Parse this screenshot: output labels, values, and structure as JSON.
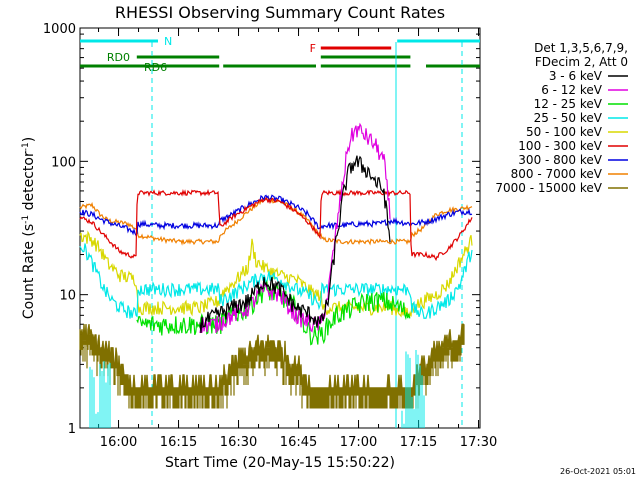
{
  "chart_data": {
    "type": "line",
    "title": "RHESSI Observing Summary Count Rates",
    "xlabel": "Start Time (20-May-15 15:50:22)",
    "ylabel_main": "Count Rate (s",
    "ylabel_sup1": "-1",
    "ylabel_mid": " detector",
    "ylabel_sup2": "-1",
    "ylabel_end": ")",
    "yscale": "log",
    "ylim": [
      1,
      1000
    ],
    "xlim_min": [
      0,
      100
    ],
    "x_tick_labels": [
      "16:00",
      "16:15",
      "16:30",
      "16:45",
      "17:00",
      "17:15",
      "17:30"
    ],
    "x_tick_min": [
      9.633,
      24.633,
      39.633,
      54.633,
      69.633,
      84.633,
      99.633
    ],
    "y_tick_labels": [
      "1",
      "10",
      "100",
      "1000"
    ],
    "y_tick_values": [
      1,
      10,
      100,
      1000
    ],
    "legend": {
      "placement": "right",
      "header1": "Det 1,3,5,6,7,9,",
      "header2": "FDecim 2, Att 0",
      "entries": [
        {
          "label": "3 - 6 keV",
          "color": "#000000"
        },
        {
          "label": "6 - 12 keV",
          "color": "#e000e0"
        },
        {
          "label": "12 - 25 keV",
          "color": "#00e000"
        },
        {
          "label": "25 - 50 keV",
          "color": "#00e8e8"
        },
        {
          "label": "50 - 100 keV",
          "color": "#d8d800"
        },
        {
          "label": "100 - 300 keV",
          "color": "#e00000"
        },
        {
          "label": "300 - 800 keV",
          "color": "#0000e0"
        },
        {
          "label": "800 - 7000 keV",
          "color": "#f08000"
        },
        {
          "label": "7000 - 15000 keV",
          "color": "#807000"
        }
      ]
    },
    "flags": [
      {
        "label": "N",
        "color": "#00e8e8",
        "segments": [
          [
            0,
            19.5
          ],
          [
            79.3,
            100
          ]
        ],
        "level": 0
      },
      {
        "label": "F",
        "color": "#e00000",
        "segments": [
          [
            60.2,
            77.8
          ]
        ],
        "level": 1
      },
      {
        "label": "RD0",
        "color": "#008000",
        "segments": [
          [
            14.2,
            34.8
          ],
          [
            60.2,
            82.6
          ]
        ],
        "level": 2
      },
      {
        "label": "RD6",
        "color": "#008000",
        "segments": [
          [
            0,
            34.8
          ],
          [
            35.8,
            59.0
          ],
          [
            60.2,
            82.6
          ],
          [
            86.5,
            100
          ]
        ],
        "level": 3
      }
    ],
    "vlines": [
      {
        "x": 18.0,
        "style": "dashed"
      },
      {
        "x": 79.0,
        "style": "solid"
      },
      {
        "x": 95.5,
        "style": "dashed"
      }
    ],
    "series": [
      {
        "name": "800 - 7000 keV",
        "color": "#f08000",
        "x": [
          0,
          3,
          5,
          7,
          12,
          14.2,
          14.5,
          20,
          25,
          30,
          34.8,
          35,
          38,
          42,
          46,
          50,
          54,
          57,
          59,
          60.2,
          60.5,
          65,
          70,
          75,
          78,
          82.6,
          83,
          86,
          89,
          92,
          95,
          98
        ],
        "y": [
          45,
          47,
          40,
          36,
          34,
          31,
          28,
          26,
          25,
          25,
          25,
          28,
          33,
          42,
          52,
          50,
          43,
          36,
          30,
          28,
          26,
          25,
          25,
          25,
          25,
          25,
          28,
          32,
          40,
          43,
          44,
          46
        ]
      },
      {
        "name": "300 - 800 keV",
        "color": "#0000e0",
        "x": [
          0,
          3,
          5,
          7,
          12,
          14.2,
          14.5,
          20,
          25,
          30,
          34.8,
          35,
          38,
          42,
          46,
          50,
          54,
          57,
          59,
          60.2,
          60.5,
          65,
          70,
          75,
          78,
          82.6,
          83,
          86,
          89,
          92,
          95,
          98
        ],
        "y": [
          42,
          40,
          37,
          35,
          31,
          29,
          34,
          33,
          33,
          33,
          33,
          36,
          40,
          47,
          54,
          52,
          46,
          40,
          34,
          31,
          33,
          33,
          34,
          34,
          36,
          34,
          34,
          35,
          37,
          40,
          42,
          42
        ]
      },
      {
        "name": "100 - 300 keV",
        "color": "#e00000",
        "x": [
          0,
          3,
          5,
          7,
          10,
          12,
          14.0,
          14.3,
          20,
          25,
          30,
          34.6,
          34.9,
          38,
          42,
          46,
          50,
          54,
          57,
          59,
          60.0,
          60.3,
          65,
          70,
          75,
          78,
          82.5,
          82.8,
          86,
          89,
          92,
          95,
          98
        ],
        "y": [
          38,
          35,
          30,
          26,
          21,
          20,
          19,
          58,
          58,
          58,
          58,
          58,
          32,
          38,
          45,
          52,
          50,
          42,
          35,
          30,
          26,
          58,
          58,
          58,
          58,
          58,
          58,
          20,
          20,
          19,
          22,
          28,
          38
        ]
      },
      {
        "name": "50 - 100 keV",
        "color": "#d8d800",
        "x": [
          0,
          3,
          5,
          7,
          10,
          14.2,
          14.5,
          20,
          25,
          30,
          34.8,
          35,
          38,
          42,
          43,
          44,
          46,
          50,
          54,
          57,
          59,
          60.2,
          60.5,
          65,
          70,
          75,
          78,
          82.6,
          83,
          86,
          89,
          92,
          95,
          98
        ],
        "y": [
          28,
          26,
          22,
          17,
          14,
          13,
          8,
          8,
          8,
          8,
          9,
          10,
          12,
          16,
          24,
          18,
          16,
          14,
          13,
          11,
          10,
          10,
          8,
          8,
          8,
          8,
          8,
          7,
          8,
          9,
          10,
          12,
          18,
          26
        ]
      },
      {
        "name": "25 - 50 keV",
        "color": "#00e8e8",
        "x": [
          0,
          2,
          4,
          6,
          8,
          10,
          14.2,
          14.5,
          20,
          25,
          30,
          34.8,
          35,
          38,
          42,
          46,
          50,
          54,
          57,
          59,
          60.2,
          60.5,
          65,
          70,
          75,
          78,
          82.6,
          83,
          86,
          89,
          92,
          95,
          98
        ],
        "y": [
          25,
          20,
          15,
          11,
          9,
          8,
          7,
          11,
          11,
          11,
          11,
          11,
          9,
          10,
          12,
          14,
          13,
          11,
          10,
          9,
          8,
          11,
          11,
          11,
          11,
          11,
          11,
          8,
          7,
          8,
          9,
          12,
          22
        ]
      },
      {
        "name": "12 - 25 keV",
        "color": "#00e000",
        "x": [
          14.2,
          18,
          22,
          26,
          30,
          34.8,
          38,
          42,
          46,
          50,
          54,
          56,
          58,
          60.2,
          64,
          68,
          72,
          76,
          80,
          82.6
        ],
        "y": [
          6,
          6,
          6,
          6,
          6,
          6,
          7,
          8,
          11,
          10,
          8,
          6,
          5,
          5,
          7,
          8,
          9,
          9,
          8,
          7
        ]
      },
      {
        "name": "6 - 12 keV",
        "color": "#e000e0",
        "x": [
          30,
          34,
          38,
          42,
          46,
          50,
          54,
          58,
          60.2,
          62,
          64,
          66,
          67,
          68,
          69,
          70,
          71,
          72,
          74,
          76,
          77.5
        ],
        "y": [
          6,
          6,
          7,
          8,
          11,
          10,
          7,
          6,
          6,
          10,
          30,
          80,
          130,
          155,
          175,
          170,
          160,
          150,
          130,
          100,
          40
        ]
      },
      {
        "name": "3 - 6 keV",
        "color": "#000000",
        "x": [
          30,
          34,
          38,
          42,
          46,
          50,
          54,
          58,
          60.2,
          62,
          64,
          66,
          67,
          68,
          69,
          70,
          72,
          74,
          76,
          77.5
        ],
        "y": [
          6,
          7,
          8,
          9,
          13,
          11,
          8,
          7,
          6,
          9,
          25,
          60,
          80,
          95,
          100,
          95,
          85,
          70,
          60,
          25
        ]
      },
      {
        "name": "7000 - 15000 keV",
        "color": "#807000",
        "x": [
          0,
          2,
          4,
          6,
          8,
          10,
          12,
          14.2,
          20,
          25,
          30,
          34.8,
          36,
          38,
          40,
          44,
          48,
          50,
          52,
          54,
          56,
          58,
          60.2,
          65,
          70,
          75,
          78,
          82.6,
          84,
          86,
          88,
          90,
          92,
          94,
          96
        ],
        "y": [
          5.5,
          5,
          4.5,
          4,
          3.5,
          3,
          2.5,
          2,
          2,
          2,
          2,
          2,
          2.5,
          3,
          3.5,
          4,
          4.5,
          4,
          3.5,
          3,
          2.5,
          2,
          2,
          2,
          2,
          2,
          2,
          2,
          2.5,
          3,
          3.5,
          4,
          4.5,
          5,
          5.5
        ]
      }
    ],
    "timestamp": "26-Oct-2021 05:01"
  }
}
